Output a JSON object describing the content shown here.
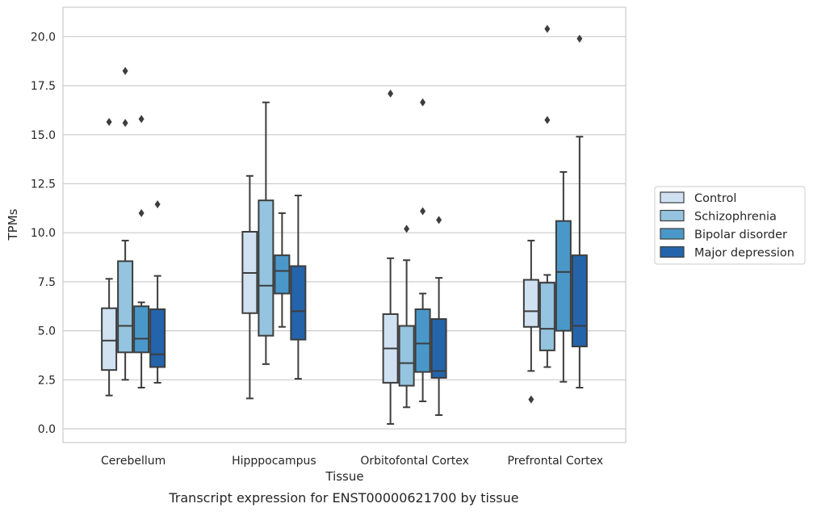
{
  "chart_data": {
    "type": "box",
    "title": "",
    "caption": "Transcript expression for ENST00000621700 by tissue",
    "xlabel": "Tissue",
    "ylabel": "TPMs",
    "ylim": [
      -0.7,
      21.5
    ],
    "yticks": [
      0.0,
      2.5,
      5.0,
      7.5,
      10.0,
      12.5,
      15.0,
      17.5,
      20.0
    ],
    "ytick_labels": [
      "0.0",
      "2.5",
      "5.0",
      "7.5",
      "10.0",
      "12.5",
      "15.0",
      "17.5",
      "20.0"
    ],
    "grid": true,
    "legend_position": "right",
    "categories": [
      "Cerebellum",
      "Hipppocampus",
      "Orbitofontal Cortex",
      "Prefrontal Cortex"
    ],
    "series": [
      {
        "name": "Control",
        "color": "#d0e1f2",
        "boxes": [
          {
            "whislo": 1.7,
            "q1": 3.0,
            "med": 4.5,
            "q3": 6.15,
            "whishi": 7.65,
            "fliers": [
              15.65
            ]
          },
          {
            "whislo": 1.55,
            "q1": 5.9,
            "med": 7.95,
            "q3": 10.05,
            "whishi": 12.9,
            "fliers": []
          },
          {
            "whislo": 0.25,
            "q1": 2.35,
            "med": 4.1,
            "q3": 5.85,
            "whishi": 8.7,
            "fliers": [
              17.1
            ]
          },
          {
            "whislo": 2.95,
            "q1": 5.2,
            "med": 6.0,
            "q3": 7.6,
            "whishi": 9.6,
            "fliers": [
              1.5
            ]
          }
        ]
      },
      {
        "name": "Schizophrenia",
        "color": "#94c4df",
        "boxes": [
          {
            "whislo": 2.5,
            "q1": 3.9,
            "med": 5.25,
            "q3": 8.55,
            "whishi": 9.6,
            "fliers": [
              18.25,
              15.6
            ]
          },
          {
            "whislo": 3.3,
            "q1": 4.75,
            "med": 7.3,
            "q3": 11.65,
            "whishi": 16.65,
            "fliers": []
          },
          {
            "whislo": 1.1,
            "q1": 2.2,
            "med": 3.35,
            "q3": 5.25,
            "whishi": 8.6,
            "fliers": [
              10.2
            ]
          },
          {
            "whislo": 3.15,
            "q1": 4.0,
            "med": 5.1,
            "q3": 7.45,
            "whishi": 7.85,
            "fliers": [
              20.4,
              15.75
            ]
          }
        ]
      },
      {
        "name": "Bipolar disorder",
        "color": "#4a98c9",
        "boxes": [
          {
            "whislo": 2.1,
            "q1": 3.9,
            "med": 4.6,
            "q3": 6.25,
            "whishi": 6.45,
            "fliers": [
              15.8,
              11.0
            ]
          },
          {
            "whislo": 5.2,
            "q1": 6.9,
            "med": 8.05,
            "q3": 8.85,
            "whishi": 11.0,
            "fliers": []
          },
          {
            "whislo": 1.4,
            "q1": 2.9,
            "med": 4.35,
            "q3": 6.1,
            "whishi": 6.9,
            "fliers": [
              16.65,
              11.1
            ]
          },
          {
            "whislo": 2.4,
            "q1": 5.0,
            "med": 8.0,
            "q3": 10.6,
            "whishi": 13.1,
            "fliers": []
          }
        ]
      },
      {
        "name": "Major depression",
        "color": "#2464ab",
        "boxes": [
          {
            "whislo": 2.35,
            "q1": 3.15,
            "med": 3.8,
            "q3": 6.1,
            "whishi": 7.8,
            "fliers": [
              11.45
            ]
          },
          {
            "whislo": 2.55,
            "q1": 4.55,
            "med": 6.0,
            "q3": 8.3,
            "whishi": 11.9,
            "fliers": []
          },
          {
            "whislo": 0.7,
            "q1": 2.6,
            "med": 2.95,
            "q3": 5.6,
            "whishi": 7.7,
            "fliers": [
              10.65
            ]
          },
          {
            "whislo": 2.1,
            "q1": 4.2,
            "med": 5.25,
            "q3": 8.85,
            "whishi": 14.9,
            "fliers": [
              19.9
            ]
          }
        ]
      }
    ]
  }
}
